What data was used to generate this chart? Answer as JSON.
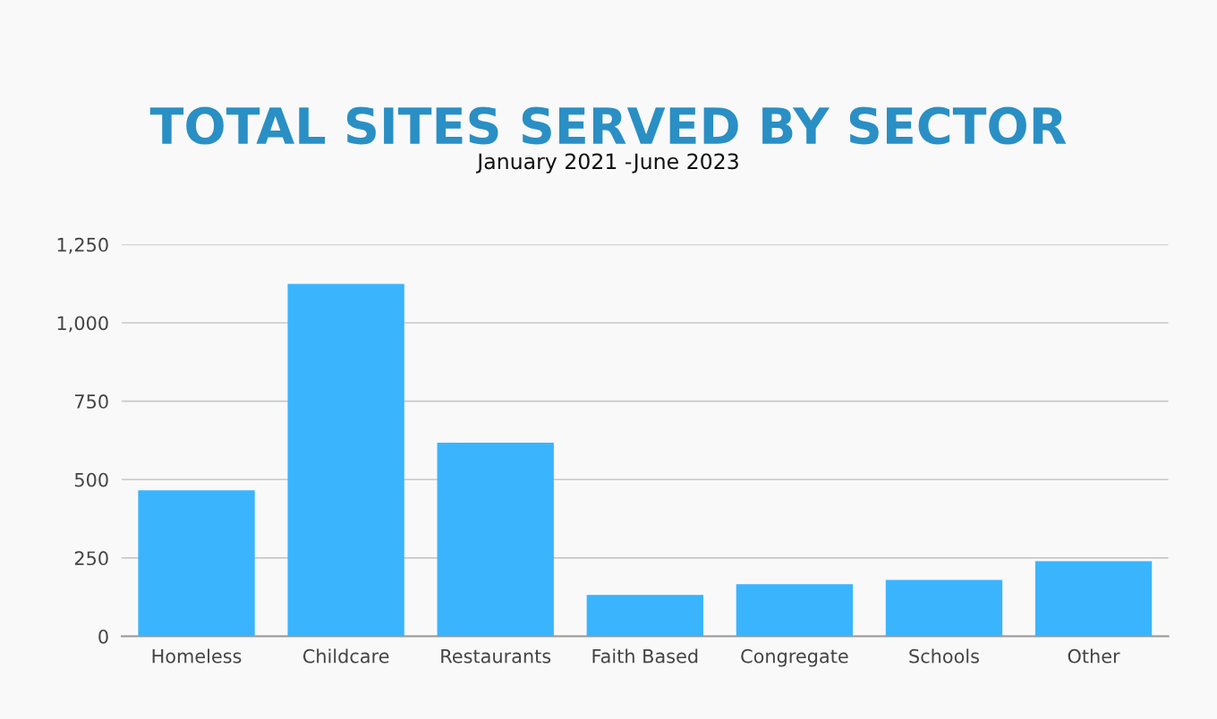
{
  "chart_data": {
    "type": "bar",
    "title": "TOTAL SITES SERVED BY SECTOR",
    "subtitle": "January 2021 -June 2023",
    "categories": [
      "Homeless",
      "Childcare",
      "Restaurants",
      "Faith Based",
      "Congregate",
      "Schools",
      "Other"
    ],
    "values": [
      466,
      1124,
      618,
      132,
      166,
      180,
      240
    ],
    "color": "#3bb4fe",
    "ylim": [
      0,
      1250
    ],
    "yticks": [
      0,
      {
        "value": 250,
        "label": "250"
      },
      {
        "value": 500,
        "label": "500"
      },
      {
        "value": 750,
        "label": "750"
      },
      {
        "value": 1000,
        "label": "1,000"
      },
      {
        "value": 1250,
        "label": "1,250"
      }
    ],
    "grid": "y",
    "legend": false
  }
}
